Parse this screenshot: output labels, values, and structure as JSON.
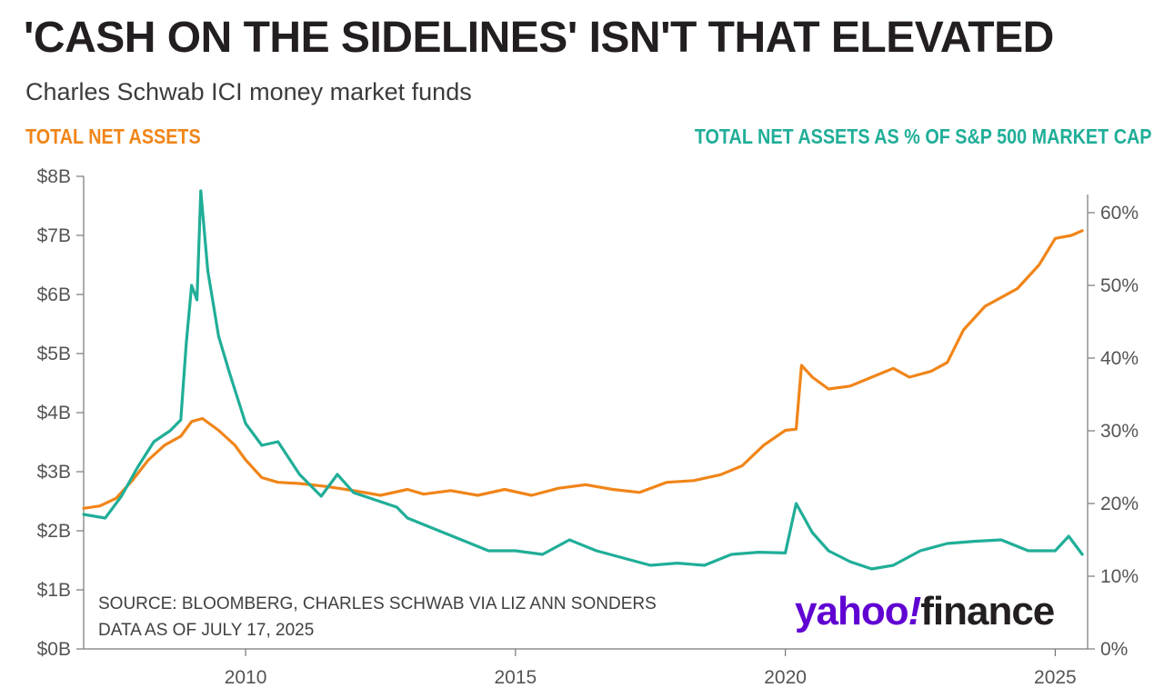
{
  "header": {
    "title": "'CASH ON THE SIDELINES' ISN'T THAT ELEVATED",
    "subtitle": "Charles Schwab ICI money market funds"
  },
  "legend": {
    "left": "TOTAL NET ASSETS",
    "right": "TOTAL NET ASSETS AS % OF S&P 500 MARKET CAP"
  },
  "colors": {
    "assets": "#f08519",
    "pct": "#20ae98",
    "axis": "#777777",
    "logo_purple": "#6001d2"
  },
  "footer": {
    "source_line1": "SOURCE: BLOOMBERG, CHARLES SCHWAB VIA LIZ ANN SONDERS",
    "source_line2": "DATA AS OF JULY 17, 2025",
    "logo_yahoo": "yahoo",
    "logo_bang": "!",
    "logo_finance": "finance"
  },
  "chart_data": {
    "type": "line",
    "title": "'CASH ON THE SIDELINES' ISN'T THAT ELEVATED",
    "subtitle": "Charles Schwab ICI money market funds",
    "x_range": [
      2007.0,
      2025.6
    ],
    "x_ticks": [
      2010,
      2015,
      2020,
      2025
    ],
    "x_tick_labels": [
      "2010",
      "2015",
      "2020",
      "2025"
    ],
    "y_left": {
      "range": [
        0,
        8
      ],
      "ticks": [
        0,
        1,
        2,
        3,
        4,
        5,
        6,
        7,
        8
      ],
      "tick_labels": [
        "$0B",
        "$1B",
        "$2B",
        "$3B",
        "$4B",
        "$5B",
        "$6B",
        "$7B",
        "$8B"
      ]
    },
    "y_right": {
      "range": [
        0,
        65
      ],
      "ticks": [
        0,
        10,
        20,
        30,
        40,
        50,
        60
      ],
      "tick_labels": [
        "0%",
        "10%",
        "20%",
        "30%",
        "40%",
        "50%",
        "60%"
      ]
    },
    "grid": false,
    "legend_placement": "top",
    "series": [
      {
        "name": "TOTAL NET ASSETS",
        "axis": "left",
        "points": [
          [
            2007.0,
            2.38
          ],
          [
            2007.3,
            2.42
          ],
          [
            2007.6,
            2.55
          ],
          [
            2007.9,
            2.85
          ],
          [
            2008.2,
            3.2
          ],
          [
            2008.5,
            3.45
          ],
          [
            2008.8,
            3.6
          ],
          [
            2009.0,
            3.85
          ],
          [
            2009.2,
            3.9
          ],
          [
            2009.5,
            3.7
          ],
          [
            2009.8,
            3.45
          ],
          [
            2010.0,
            3.2
          ],
          [
            2010.3,
            2.9
          ],
          [
            2010.6,
            2.82
          ],
          [
            2011.0,
            2.8
          ],
          [
            2011.5,
            2.75
          ],
          [
            2012.0,
            2.68
          ],
          [
            2012.5,
            2.6
          ],
          [
            2013.0,
            2.7
          ],
          [
            2013.3,
            2.62
          ],
          [
            2013.8,
            2.68
          ],
          [
            2014.3,
            2.6
          ],
          [
            2014.8,
            2.7
          ],
          [
            2015.3,
            2.6
          ],
          [
            2015.8,
            2.72
          ],
          [
            2016.3,
            2.78
          ],
          [
            2016.8,
            2.7
          ],
          [
            2017.3,
            2.65
          ],
          [
            2017.8,
            2.82
          ],
          [
            2018.3,
            2.85
          ],
          [
            2018.8,
            2.95
          ],
          [
            2019.2,
            3.1
          ],
          [
            2019.6,
            3.45
          ],
          [
            2020.0,
            3.7
          ],
          [
            2020.2,
            3.72
          ],
          [
            2020.3,
            4.8
          ],
          [
            2020.5,
            4.6
          ],
          [
            2020.8,
            4.4
          ],
          [
            2021.2,
            4.45
          ],
          [
            2021.6,
            4.6
          ],
          [
            2022.0,
            4.75
          ],
          [
            2022.3,
            4.6
          ],
          [
            2022.7,
            4.7
          ],
          [
            2023.0,
            4.85
          ],
          [
            2023.3,
            5.4
          ],
          [
            2023.7,
            5.8
          ],
          [
            2024.0,
            5.95
          ],
          [
            2024.3,
            6.1
          ],
          [
            2024.7,
            6.5
          ],
          [
            2025.0,
            6.95
          ],
          [
            2025.3,
            7.0
          ],
          [
            2025.5,
            7.08
          ]
        ]
      },
      {
        "name": "TOTAL NET ASSETS AS % OF S&P 500 MARKET CAP",
        "axis": "right",
        "points": [
          [
            2007.0,
            18.5
          ],
          [
            2007.4,
            18.0
          ],
          [
            2007.7,
            21.0
          ],
          [
            2008.0,
            25.0
          ],
          [
            2008.3,
            28.5
          ],
          [
            2008.6,
            30.0
          ],
          [
            2008.8,
            31.5
          ],
          [
            2008.9,
            42.0
          ],
          [
            2009.0,
            50.0
          ],
          [
            2009.1,
            48.0
          ],
          [
            2009.17,
            63.0
          ],
          [
            2009.3,
            52.0
          ],
          [
            2009.5,
            43.0
          ],
          [
            2009.7,
            38.0
          ],
          [
            2010.0,
            31.0
          ],
          [
            2010.3,
            28.0
          ],
          [
            2010.6,
            28.5
          ],
          [
            2011.0,
            24.0
          ],
          [
            2011.4,
            21.0
          ],
          [
            2011.7,
            24.0
          ],
          [
            2012.0,
            21.5
          ],
          [
            2012.4,
            20.5
          ],
          [
            2012.8,
            19.5
          ],
          [
            2013.0,
            18.0
          ],
          [
            2013.5,
            16.5
          ],
          [
            2014.0,
            15.0
          ],
          [
            2014.5,
            13.5
          ],
          [
            2015.0,
            13.5
          ],
          [
            2015.5,
            13.0
          ],
          [
            2016.0,
            15.0
          ],
          [
            2016.5,
            13.5
          ],
          [
            2017.0,
            12.5
          ],
          [
            2017.5,
            11.5
          ],
          [
            2018.0,
            11.8
          ],
          [
            2018.5,
            11.5
          ],
          [
            2019.0,
            13.0
          ],
          [
            2019.5,
            13.3
          ],
          [
            2020.0,
            13.2
          ],
          [
            2020.2,
            20.0
          ],
          [
            2020.5,
            16.0
          ],
          [
            2020.8,
            13.5
          ],
          [
            2021.2,
            12.0
          ],
          [
            2021.6,
            11.0
          ],
          [
            2022.0,
            11.5
          ],
          [
            2022.5,
            13.5
          ],
          [
            2023.0,
            14.5
          ],
          [
            2023.5,
            14.8
          ],
          [
            2024.0,
            15.0
          ],
          [
            2024.5,
            13.5
          ],
          [
            2025.0,
            13.5
          ],
          [
            2025.25,
            15.5
          ],
          [
            2025.5,
            13.0
          ]
        ]
      }
    ],
    "annotations": [
      "SOURCE: BLOOMBERG, CHARLES SCHWAB VIA LIZ ANN SONDERS",
      "DATA AS OF JULY 17, 2025"
    ]
  }
}
